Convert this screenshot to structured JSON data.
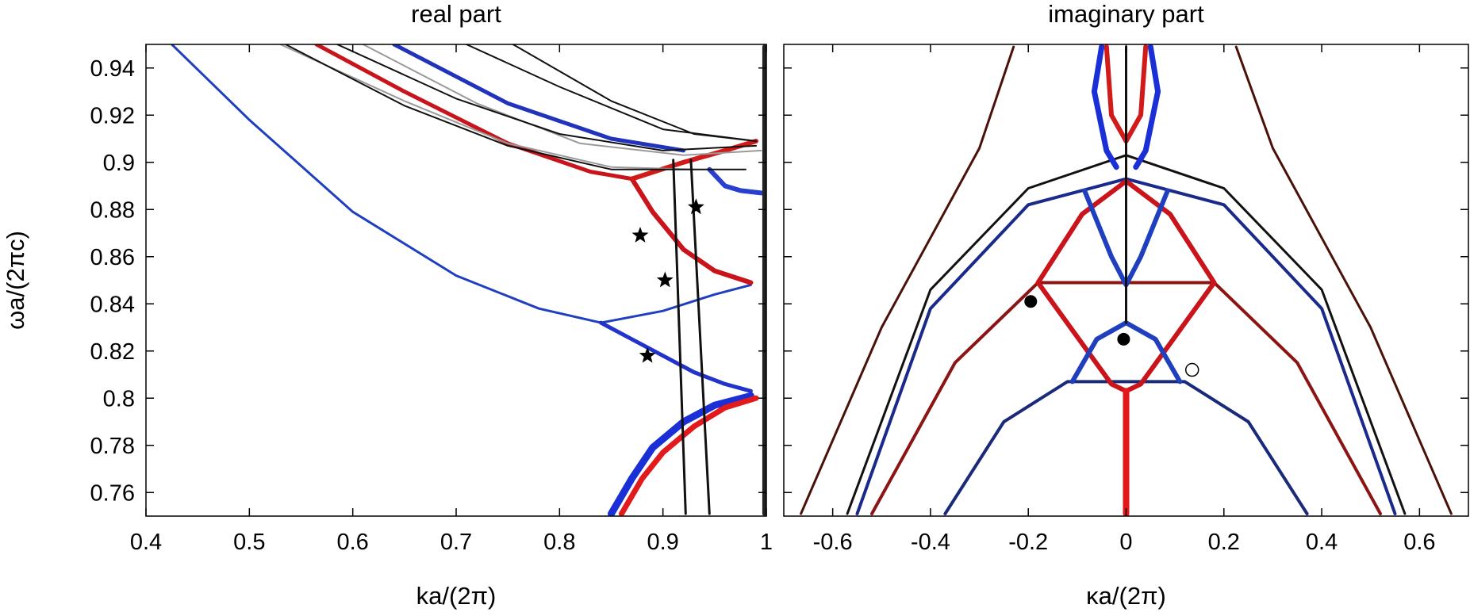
{
  "chart_data": [
    {
      "type": "line",
      "title": "real part",
      "xlabel": "ka/(2π)",
      "ylabel": "ωa/(2πc)",
      "xlim": [
        0.4,
        1.0
      ],
      "ylim": [
        0.75,
        0.95
      ],
      "grid": false,
      "x_ticks": [
        "0.4",
        "0.5",
        "0.6",
        "0.7",
        "0.8",
        "0.9",
        "1"
      ],
      "y_ticks": [
        "0.76",
        "0.78",
        "0.8",
        "0.82",
        "0.84",
        "0.86",
        "0.88",
        "0.9",
        "0.92",
        "0.94"
      ],
      "series": [
        {
          "name": "lowest band (blue)",
          "color": "#1f3fbf",
          "width": 3,
          "points": [
            [
              0.425,
              0.95
            ],
            [
              0.5,
              0.918
            ],
            [
              0.6,
              0.879
            ],
            [
              0.7,
              0.852
            ],
            [
              0.78,
              0.838
            ],
            [
              0.84,
              0.832
            ],
            [
              0.9,
              0.837
            ],
            [
              0.95,
              0.844
            ],
            [
              0.985,
              0.848
            ]
          ]
        },
        {
          "name": "blue branch to 0.802",
          "color": "#2233cc",
          "width": 5,
          "points": [
            [
              0.84,
              0.832
            ],
            [
              0.87,
              0.825
            ],
            [
              0.9,
              0.818
            ],
            [
              0.93,
              0.811
            ],
            [
              0.96,
              0.806
            ],
            [
              0.985,
              0.803
            ]
          ]
        },
        {
          "name": "lower blue arc",
          "color": "#1a2fd6",
          "width": 9,
          "points": [
            [
              0.85,
              0.751
            ],
            [
              0.87,
              0.766
            ],
            [
              0.89,
              0.779
            ],
            [
              0.92,
              0.79
            ],
            [
              0.95,
              0.797
            ],
            [
              0.985,
              0.801
            ]
          ]
        },
        {
          "name": "lower red arc",
          "color": "#e31a1c",
          "width": 7,
          "points": [
            [
              0.86,
              0.751
            ],
            [
              0.88,
              0.766
            ],
            [
              0.9,
              0.777
            ],
            [
              0.93,
              0.788
            ],
            [
              0.96,
              0.796
            ],
            [
              0.99,
              0.8
            ]
          ]
        },
        {
          "name": "red branch 0.893 to 0.849",
          "color": "#c8141a",
          "width": 6,
          "points": [
            [
              0.87,
              0.893
            ],
            [
              0.89,
              0.879
            ],
            [
              0.92,
              0.863
            ],
            [
              0.95,
              0.854
            ],
            [
              0.985,
              0.849
            ]
          ]
        },
        {
          "name": "red upper band",
          "color": "#c8141a",
          "width": 5,
          "points": [
            [
              0.565,
              0.95
            ],
            [
              0.65,
              0.93
            ],
            [
              0.75,
              0.908
            ],
            [
              0.83,
              0.896
            ],
            [
              0.87,
              0.893
            ]
          ]
        },
        {
          "name": "red cusp arc",
          "color": "#d11a1a",
          "width": 6,
          "points": [
            [
              0.87,
              0.893
            ],
            [
              0.92,
              0.9
            ],
            [
              0.96,
              0.905
            ],
            [
              0.99,
              0.909
            ]
          ]
        },
        {
          "name": "blue upper band",
          "color": "#2233bb",
          "width": 5,
          "points": [
            [
              0.64,
              0.95
            ],
            [
              0.75,
              0.925
            ],
            [
              0.85,
              0.91
            ],
            [
              0.92,
              0.905
            ]
          ]
        },
        {
          "name": "blue short arc",
          "color": "#2a3fd0",
          "width": 6,
          "points": [
            [
              0.945,
              0.897
            ],
            [
              0.96,
              0.89
            ],
            [
              0.975,
              0.888
            ],
            [
              0.995,
              0.887
            ]
          ]
        },
        {
          "name": "gray band 1",
          "color": "#9a9a9a",
          "width": 2,
          "points": [
            [
              0.53,
              0.95
            ],
            [
              0.65,
              0.926
            ],
            [
              0.75,
              0.908
            ],
            [
              0.85,
              0.898
            ],
            [
              0.93,
              0.897
            ]
          ]
        },
        {
          "name": "gray band 2",
          "color": "#9a9a9a",
          "width": 2,
          "points": [
            [
              0.61,
              0.95
            ],
            [
              0.72,
              0.925
            ],
            [
              0.82,
              0.908
            ],
            [
              0.92,
              0.903
            ],
            [
              0.995,
              0.905
            ]
          ]
        },
        {
          "name": "black band 1",
          "color": "#111111",
          "width": 2,
          "points": [
            [
              0.535,
              0.95
            ],
            [
              0.65,
              0.924
            ],
            [
              0.75,
              0.907
            ],
            [
              0.85,
              0.897
            ],
            [
              0.98,
              0.897
            ]
          ]
        },
        {
          "name": "black band 2",
          "color": "#111111",
          "width": 2,
          "points": [
            [
              0.585,
              0.95
            ],
            [
              0.7,
              0.927
            ],
            [
              0.8,
              0.912
            ],
            [
              0.9,
              0.905
            ],
            [
              0.99,
              0.907
            ]
          ]
        },
        {
          "name": "black band 3",
          "color": "#111111",
          "width": 2,
          "points": [
            [
              0.71,
              0.95
            ],
            [
              0.8,
              0.932
            ],
            [
              0.9,
              0.914
            ],
            [
              0.99,
              0.909
            ]
          ]
        },
        {
          "name": "black band 4",
          "color": "#111111",
          "width": 2,
          "points": [
            [
              0.755,
              0.95
            ],
            [
              0.85,
              0.926
            ],
            [
              0.93,
              0.912
            ],
            [
              0.99,
              0.909
            ]
          ]
        },
        {
          "name": "black steep line 1",
          "color": "#111111",
          "width": 3,
          "points": [
            [
              0.922,
              0.751
            ],
            [
              0.91,
              0.901
            ]
          ]
        },
        {
          "name": "black steep line 2",
          "color": "#111111",
          "width": 3,
          "points": [
            [
              0.945,
              0.751
            ],
            [
              0.927,
              0.901
            ]
          ]
        },
        {
          "name": "vertical band k=1",
          "color": "#222222",
          "width": 5,
          "points": [
            [
              0.998,
              0.751
            ],
            [
              0.998,
              0.949
            ]
          ]
        }
      ],
      "annotations": [
        {
          "marker": "star",
          "x": 0.932,
          "y": 0.881
        },
        {
          "marker": "star",
          "x": 0.878,
          "y": 0.869
        },
        {
          "marker": "star",
          "x": 0.902,
          "y": 0.85
        },
        {
          "marker": "star",
          "x": 0.885,
          "y": 0.818
        }
      ]
    },
    {
      "type": "line",
      "title": "imaginary part",
      "xlabel": "κa/(2π)",
      "ylabel": "",
      "xlim": [
        -0.7,
        0.7
      ],
      "ylim": [
        0.75,
        0.95
      ],
      "grid": false,
      "x_ticks": [
        "-0.6",
        "-0.4",
        "-0.2",
        "0",
        "0.2",
        "0.4",
        "0.6"
      ],
      "y_ticks": [],
      "series": [
        {
          "name": "outer dark red parabola",
          "color": "#4a1108",
          "width": 3,
          "points": [
            [
              -0.665,
              0.751
            ],
            [
              -0.5,
              0.83
            ],
            [
              -0.3,
              0.906
            ],
            [
              -0.23,
              0.949
            ]
          ]
        },
        {
          "name": "outer dark red parabola right",
          "color": "#4a1108",
          "width": 3,
          "points": [
            [
              0.225,
              0.949
            ],
            [
              0.3,
              0.906
            ],
            [
              0.5,
              0.83
            ],
            [
              0.665,
              0.751
            ]
          ]
        },
        {
          "name": "black arch",
          "color": "#111111",
          "width": 3,
          "points": [
            [
              -0.57,
              0.751
            ],
            [
              -0.4,
              0.846
            ],
            [
              -0.2,
              0.889
            ],
            [
              0,
              0.903
            ],
            [
              0.2,
              0.889
            ],
            [
              0.4,
              0.846
            ],
            [
              0.57,
              0.751
            ]
          ]
        },
        {
          "name": "navy arch",
          "color": "#1a2a8a",
          "width": 4,
          "points": [
            [
              -0.55,
              0.751
            ],
            [
              -0.4,
              0.838
            ],
            [
              -0.2,
              0.882
            ],
            [
              0,
              0.893
            ],
            [
              0.2,
              0.882
            ],
            [
              0.4,
              0.838
            ],
            [
              0.55,
              0.751
            ]
          ]
        },
        {
          "name": "dark red arch",
          "color": "#8b1414",
          "width": 4,
          "points": [
            [
              -0.52,
              0.751
            ],
            [
              -0.35,
              0.815
            ],
            [
              -0.18,
              0.849
            ],
            [
              0.18,
              0.849
            ],
            [
              0.35,
              0.815
            ],
            [
              0.52,
              0.751
            ]
          ]
        },
        {
          "name": "lower navy arch",
          "color": "#1a2a7a",
          "width": 4,
          "points": [
            [
              -0.37,
              0.751
            ],
            [
              -0.25,
              0.79
            ],
            [
              -0.12,
              0.807
            ],
            [
              0.12,
              0.807
            ],
            [
              0.25,
              0.79
            ],
            [
              0.37,
              0.751
            ]
          ]
        },
        {
          "name": "red inner arch",
          "color": "#c8141a",
          "width": 6,
          "points": [
            [
              -0.18,
              0.849
            ],
            [
              -0.09,
              0.878
            ],
            [
              0,
              0.892
            ],
            [
              0.09,
              0.878
            ],
            [
              0.18,
              0.849
            ]
          ]
        },
        {
          "name": "red cosine",
          "color": "#c8141a",
          "width": 6,
          "points": [
            [
              -0.18,
              0.849
            ],
            [
              -0.1,
              0.826
            ],
            [
              -0.03,
              0.806
            ],
            [
              0,
              0.803
            ],
            [
              0.03,
              0.806
            ],
            [
              0.1,
              0.826
            ],
            [
              0.18,
              0.849
            ]
          ]
        },
        {
          "name": "blue dome",
          "color": "#1f3fbf",
          "width": 6,
          "points": [
            [
              -0.11,
              0.807
            ],
            [
              -0.06,
              0.825
            ],
            [
              0,
              0.832
            ],
            [
              0.06,
              0.825
            ],
            [
              0.11,
              0.807
            ]
          ]
        },
        {
          "name": "blue tulip",
          "color": "#1f3fbf",
          "width": 6,
          "points": [
            [
              -0.085,
              0.888
            ],
            [
              -0.03,
              0.86
            ],
            [
              0,
              0.848
            ],
            [
              0.03,
              0.86
            ],
            [
              0.085,
              0.888
            ]
          ]
        },
        {
          "name": "blue vertical loop left",
          "color": "#1a2fd6",
          "width": 7,
          "points": [
            [
              -0.05,
              0.949
            ],
            [
              -0.065,
              0.93
            ],
            [
              -0.04,
              0.905
            ],
            [
              -0.02,
              0.898
            ]
          ]
        },
        {
          "name": "blue vertical loop right",
          "color": "#1a2fd6",
          "width": 7,
          "points": [
            [
              0.05,
              0.949
            ],
            [
              0.065,
              0.93
            ],
            [
              0.04,
              0.905
            ],
            [
              0.02,
              0.898
            ]
          ]
        },
        {
          "name": "red upper U",
          "color": "#d11a1a",
          "width": 6,
          "points": [
            [
              -0.04,
              0.949
            ],
            [
              -0.03,
              0.92
            ],
            [
              0,
              0.909
            ],
            [
              0.03,
              0.92
            ],
            [
              0.04,
              0.949
            ]
          ]
        },
        {
          "name": "red vertical axis",
          "color": "#e31a1c",
          "width": 8,
          "points": [
            [
              0,
              0.751
            ],
            [
              0,
              0.803
            ]
          ]
        },
        {
          "name": "black vertical axis",
          "color": "#111111",
          "width": 3,
          "points": [
            [
              0,
              0.832
            ],
            [
              0,
              0.949
            ]
          ]
        }
      ],
      "annotations": [
        {
          "marker": "filled-circle",
          "x": -0.195,
          "y": 0.841
        },
        {
          "marker": "filled-circle",
          "x": -0.005,
          "y": 0.825
        },
        {
          "marker": "open-circle",
          "x": 0.135,
          "y": 0.812
        }
      ]
    }
  ]
}
